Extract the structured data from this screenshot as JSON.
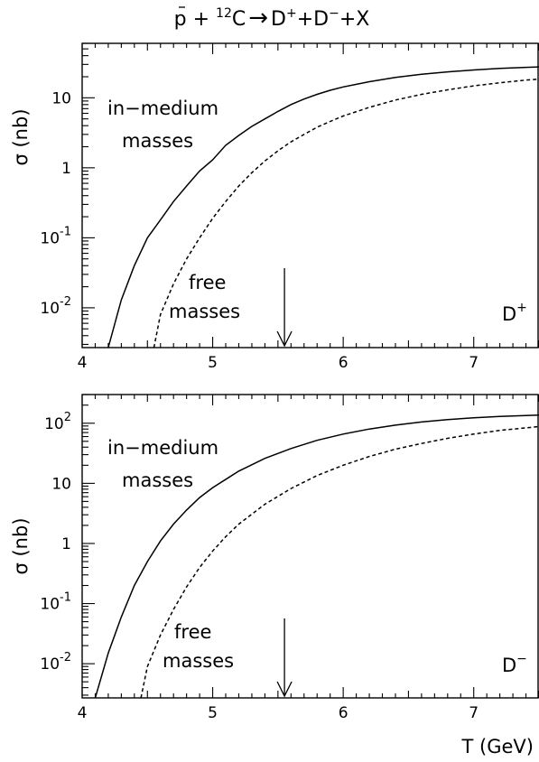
{
  "figure": {
    "title": {
      "pbar": "p",
      "plus1": " + ",
      "c_sup": "12",
      "c": "C",
      "arrow": "→",
      "d1": "D",
      "d1_sup": "+",
      "plus2": "+",
      "d2": "D",
      "d2_sup": "−",
      "rest": "+X"
    },
    "xlabel": "T  (GeV)"
  },
  "chart_data": [
    {
      "type": "line",
      "panel": "D+",
      "title": "",
      "xlabel": "",
      "ylabel": "σ  (nb)",
      "xlim": [
        4,
        7.5
      ],
      "ylim": [
        0.0027,
        60
      ],
      "yscale": "log",
      "x_ticks": [
        "4",
        "5",
        "6",
        "7"
      ],
      "y_ticks": [
        {
          "value": 0.01,
          "base": "10",
          "exp": "-2"
        },
        {
          "value": 0.1,
          "base": "10",
          "exp": "-1"
        },
        {
          "value": 1,
          "base": "1",
          "exp": ""
        },
        {
          "value": 10,
          "base": "10",
          "exp": ""
        }
      ],
      "panel_label": {
        "text": "D",
        "sup": "+"
      },
      "series": [
        {
          "style": "solid",
          "x": [
            4.2,
            4.3,
            4.4,
            4.5,
            4.6,
            4.7,
            4.8,
            4.9,
            5.0,
            5.1,
            5.2,
            5.3,
            5.4,
            5.5,
            5.6,
            5.7,
            5.8,
            5.9,
            6.0,
            6.2,
            6.4,
            6.6,
            6.8,
            7.0,
            7.2,
            7.4,
            7.5
          ],
          "y": [
            0.0027,
            0.013,
            0.04,
            0.1,
            0.18,
            0.33,
            0.55,
            0.9,
            1.3,
            2.1,
            2.9,
            3.9,
            5.0,
            6.4,
            8.0,
            9.6,
            11.2,
            12.8,
            14.3,
            17.0,
            19.5,
            21.7,
            23.5,
            25.0,
            26.3,
            27.2,
            27.6
          ]
        },
        {
          "style": "dashed",
          "x": [
            4.55,
            4.6,
            4.7,
            4.8,
            4.9,
            5.0,
            5.1,
            5.2,
            5.3,
            5.4,
            5.5,
            5.6,
            5.7,
            5.8,
            5.9,
            6.0,
            6.2,
            6.4,
            6.6,
            6.8,
            7.0,
            7.2,
            7.4,
            7.5
          ],
          "y": [
            0.0027,
            0.008,
            0.022,
            0.05,
            0.1,
            0.19,
            0.33,
            0.55,
            0.85,
            1.25,
            1.75,
            2.35,
            3.0,
            3.8,
            4.6,
            5.5,
            7.3,
            9.3,
            11.2,
            13.0,
            14.8,
            16.4,
            17.9,
            18.5
          ]
        }
      ],
      "annotations": {
        "in_medium_line1": "in−medium",
        "in_medium_line2": "masses",
        "free_line1": "free",
        "free_line2": "masses"
      },
      "threshold_arrow_x": 5.55
    },
    {
      "type": "line",
      "panel": "D-",
      "title": "",
      "xlabel": "T  (GeV)",
      "ylabel": "σ  (nb)",
      "xlim": [
        4,
        7.5
      ],
      "ylim": [
        0.0027,
        300
      ],
      "yscale": "log",
      "x_ticks": [
        "4",
        "5",
        "6",
        "7"
      ],
      "y_ticks": [
        {
          "value": 0.01,
          "base": "10",
          "exp": "-2"
        },
        {
          "value": 0.1,
          "base": "10",
          "exp": "-1"
        },
        {
          "value": 1,
          "base": "1",
          "exp": ""
        },
        {
          "value": 10,
          "base": "10",
          "exp": ""
        },
        {
          "value": 100,
          "base": "10",
          "exp": "2"
        }
      ],
      "panel_label": {
        "text": "D",
        "sup": "−"
      },
      "series": [
        {
          "style": "solid",
          "x": [
            4.1,
            4.2,
            4.3,
            4.4,
            4.5,
            4.6,
            4.7,
            4.8,
            4.9,
            5.0,
            5.2,
            5.4,
            5.6,
            5.8,
            6.0,
            6.2,
            6.4,
            6.6,
            6.8,
            7.0,
            7.2,
            7.5
          ],
          "y": [
            0.0027,
            0.015,
            0.06,
            0.2,
            0.5,
            1.1,
            2.1,
            3.6,
            5.8,
            8.5,
            16.0,
            26.0,
            38.0,
            52.0,
            66.0,
            80.0,
            93.0,
            105.0,
            115.0,
            123.0,
            130.0,
            137.0
          ]
        },
        {
          "style": "dashed",
          "x": [
            4.45,
            4.5,
            4.6,
            4.7,
            4.8,
            4.9,
            5.0,
            5.1,
            5.2,
            5.4,
            5.6,
            5.8,
            6.0,
            6.2,
            6.4,
            6.6,
            6.8,
            7.0,
            7.2,
            7.5
          ],
          "y": [
            0.0027,
            0.009,
            0.03,
            0.08,
            0.19,
            0.4,
            0.75,
            1.3,
            2.1,
            4.5,
            8.2,
            13.5,
            20.0,
            28.0,
            37.0,
            46.0,
            56.0,
            66.0,
            76.0,
            88.0
          ]
        }
      ],
      "annotations": {
        "in_medium_line1": "in−medium",
        "in_medium_line2": "masses",
        "free_line1": "free",
        "free_line2": "masses"
      },
      "threshold_arrow_x": 5.55
    }
  ]
}
